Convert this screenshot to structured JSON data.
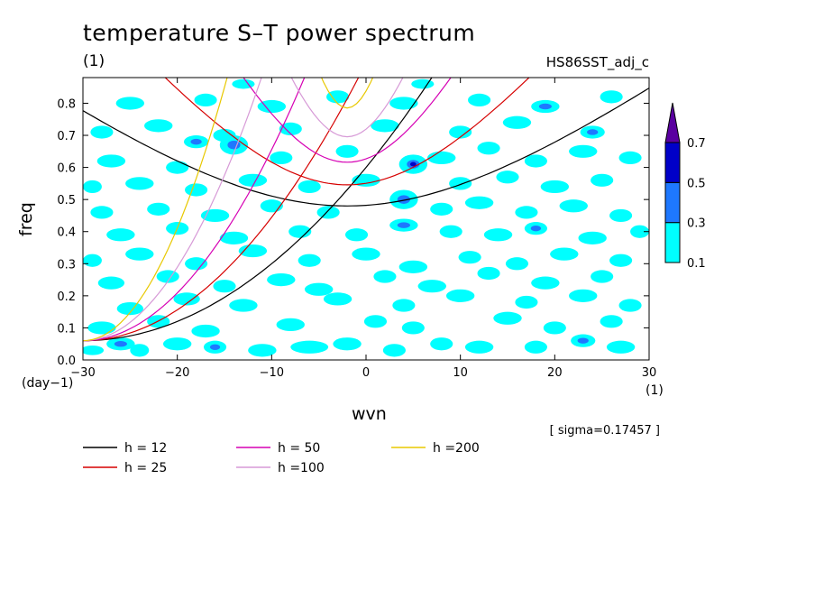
{
  "chart_data": {
    "type": "heatmap",
    "title": "temperature S–T power spectrum",
    "subtitle_left": "(1)",
    "subtitle_right": "HS86SST_adj_c",
    "xlabel": "wvn",
    "ylabel": "freq",
    "x_unit": "(1)",
    "y_unit": "(day−1)",
    "xlim": [
      -30,
      30
    ],
    "ylim": [
      0,
      0.88
    ],
    "x_ticks": [
      -30,
      -20,
      -10,
      0,
      10,
      20,
      30
    ],
    "x_tick_labels": [
      "−30",
      "−20",
      "−10",
      "0",
      "10",
      "20",
      "30"
    ],
    "y_ticks": [
      0.0,
      0.1,
      0.2,
      0.3,
      0.4,
      0.5,
      0.6,
      0.7,
      0.8
    ],
    "y_tick_labels": [
      "0.0",
      "0.1",
      "0.2",
      "0.3",
      "0.4",
      "0.5",
      "0.6",
      "0.7",
      "0.8"
    ],
    "colorbar": {
      "levels": [
        0.1,
        0.3,
        0.5,
        0.7
      ],
      "labels": [
        "0.1",
        "0.3",
        "0.5",
        "0.7"
      ],
      "colors": [
        "#00ffff",
        "#1e78ff",
        "#0000c8",
        "#5a00a0"
      ]
    },
    "sigma_text": "[ sigma=0.17457 ]",
    "series": [
      {
        "name": "h = 12",
        "h": 12,
        "color": "#000000"
      },
      {
        "name": "h = 25",
        "h": 25,
        "color": "#d60000"
      },
      {
        "name": "h = 50",
        "h": 50,
        "color": "#d600b4"
      },
      {
        "name": "h =100",
        "h": 100,
        "color": "#d79ad7"
      },
      {
        "name": "h =200",
        "h": 200,
        "color": "#e8c800"
      }
    ],
    "patches": [
      [
        -29,
        0.03,
        1.2,
        0.015,
        0
      ],
      [
        -26,
        0.05,
        1.5,
        0.02,
        1
      ],
      [
        -24,
        0.03,
        1.0,
        0.02,
        0
      ],
      [
        -20,
        0.05,
        1.5,
        0.02,
        0
      ],
      [
        -16,
        0.04,
        1.2,
        0.02,
        1
      ],
      [
        -11,
        0.03,
        1.5,
        0.02,
        0
      ],
      [
        -6,
        0.04,
        2.0,
        0.02,
        0
      ],
      [
        -2,
        0.05,
        1.5,
        0.02,
        0
      ],
      [
        3,
        0.03,
        1.2,
        0.02,
        0
      ],
      [
        8,
        0.05,
        1.2,
        0.02,
        0
      ],
      [
        12,
        0.04,
        1.5,
        0.02,
        0
      ],
      [
        18,
        0.04,
        1.2,
        0.02,
        0
      ],
      [
        23,
        0.06,
        1.3,
        0.02,
        1
      ],
      [
        27,
        0.04,
        1.5,
        0.02,
        0
      ],
      [
        -28,
        0.1,
        1.5,
        0.02,
        0
      ],
      [
        -22,
        0.12,
        1.2,
        0.02,
        0
      ],
      [
        -17,
        0.09,
        1.5,
        0.02,
        0
      ],
      [
        -8,
        0.11,
        1.5,
        0.02,
        0
      ],
      [
        1,
        0.12,
        1.2,
        0.02,
        0
      ],
      [
        5,
        0.1,
        1.2,
        0.02,
        0
      ],
      [
        15,
        0.13,
        1.5,
        0.02,
        0
      ],
      [
        20,
        0.1,
        1.2,
        0.02,
        0
      ],
      [
        26,
        0.12,
        1.2,
        0.02,
        0
      ],
      [
        -25,
        0.16,
        1.4,
        0.02,
        0
      ],
      [
        -19,
        0.19,
        1.4,
        0.02,
        0
      ],
      [
        -13,
        0.17,
        1.5,
        0.02,
        0
      ],
      [
        -3,
        0.19,
        1.5,
        0.02,
        0
      ],
      [
        4,
        0.17,
        1.2,
        0.02,
        0
      ],
      [
        10,
        0.2,
        1.5,
        0.02,
        0
      ],
      [
        17,
        0.18,
        1.2,
        0.02,
        0
      ],
      [
        23,
        0.2,
        1.5,
        0.02,
        0
      ],
      [
        28,
        0.17,
        1.2,
        0.02,
        0
      ],
      [
        -27,
        0.24,
        1.4,
        0.02,
        0
      ],
      [
        -21,
        0.26,
        1.2,
        0.02,
        0
      ],
      [
        -15,
        0.23,
        1.2,
        0.02,
        0
      ],
      [
        -9,
        0.25,
        1.5,
        0.02,
        0
      ],
      [
        -5,
        0.22,
        1.5,
        0.02,
        0
      ],
      [
        2,
        0.26,
        1.2,
        0.02,
        0
      ],
      [
        7,
        0.23,
        1.5,
        0.02,
        0
      ],
      [
        13,
        0.27,
        1.2,
        0.02,
        0
      ],
      [
        19,
        0.24,
        1.5,
        0.02,
        0
      ],
      [
        25,
        0.26,
        1.2,
        0.02,
        0
      ],
      [
        -29,
        0.31,
        1.0,
        0.02,
        0
      ],
      [
        -24,
        0.33,
        1.5,
        0.02,
        0
      ],
      [
        -18,
        0.3,
        1.2,
        0.02,
        0
      ],
      [
        -12,
        0.34,
        1.5,
        0.02,
        0
      ],
      [
        -6,
        0.31,
        1.2,
        0.02,
        0
      ],
      [
        0,
        0.33,
        1.5,
        0.02,
        0
      ],
      [
        5,
        0.29,
        1.5,
        0.02,
        0
      ],
      [
        11,
        0.32,
        1.2,
        0.02,
        0
      ],
      [
        16,
        0.3,
        1.2,
        0.02,
        0
      ],
      [
        21,
        0.33,
        1.5,
        0.02,
        0
      ],
      [
        27,
        0.31,
        1.2,
        0.02,
        0
      ],
      [
        -26,
        0.39,
        1.5,
        0.02,
        0
      ],
      [
        -20,
        0.41,
        1.2,
        0.02,
        0
      ],
      [
        -14,
        0.38,
        1.5,
        0.02,
        0
      ],
      [
        -7,
        0.4,
        1.2,
        0.02,
        0
      ],
      [
        -1,
        0.39,
        1.2,
        0.02,
        0
      ],
      [
        4,
        0.42,
        1.5,
        0.02,
        1
      ],
      [
        9,
        0.4,
        1.2,
        0.02,
        0
      ],
      [
        14,
        0.39,
        1.5,
        0.02,
        0
      ],
      [
        18,
        0.41,
        1.2,
        0.02,
        1
      ],
      [
        24,
        0.38,
        1.5,
        0.02,
        0
      ],
      [
        29,
        0.4,
        1.0,
        0.02,
        0
      ],
      [
        -28,
        0.46,
        1.2,
        0.02,
        0
      ],
      [
        -22,
        0.47,
        1.2,
        0.02,
        0
      ],
      [
        -16,
        0.45,
        1.5,
        0.02,
        0
      ],
      [
        -10,
        0.48,
        1.2,
        0.02,
        0
      ],
      [
        -4,
        0.46,
        1.2,
        0.02,
        0
      ],
      [
        4,
        0.5,
        1.5,
        0.03,
        1
      ],
      [
        8,
        0.47,
        1.2,
        0.02,
        0
      ],
      [
        12,
        0.49,
        1.5,
        0.02,
        0
      ],
      [
        17,
        0.46,
        1.2,
        0.02,
        0
      ],
      [
        22,
        0.48,
        1.5,
        0.02,
        0
      ],
      [
        27,
        0.45,
        1.2,
        0.02,
        0
      ],
      [
        -29,
        0.54,
        1.0,
        0.02,
        0
      ],
      [
        -24,
        0.55,
        1.5,
        0.02,
        0
      ],
      [
        -18,
        0.53,
        1.2,
        0.02,
        0
      ],
      [
        -12,
        0.56,
        1.5,
        0.02,
        0
      ],
      [
        -6,
        0.54,
        1.2,
        0.02,
        0
      ],
      [
        0,
        0.56,
        1.5,
        0.02,
        0
      ],
      [
        5,
        0.61,
        1.5,
        0.03,
        2
      ],
      [
        10,
        0.55,
        1.2,
        0.02,
        0
      ],
      [
        15,
        0.57,
        1.2,
        0.02,
        0
      ],
      [
        20,
        0.54,
        1.5,
        0.02,
        0
      ],
      [
        25,
        0.56,
        1.2,
        0.02,
        0
      ],
      [
        -27,
        0.62,
        1.5,
        0.02,
        0
      ],
      [
        -20,
        0.6,
        1.2,
        0.02,
        0
      ],
      [
        -14,
        0.67,
        1.5,
        0.03,
        1
      ],
      [
        -18,
        0.68,
        1.3,
        0.02,
        1
      ],
      [
        -9,
        0.63,
        1.2,
        0.02,
        0
      ],
      [
        -2,
        0.65,
        1.2,
        0.02,
        0
      ],
      [
        8,
        0.63,
        1.5,
        0.02,
        0
      ],
      [
        13,
        0.66,
        1.2,
        0.02,
        0
      ],
      [
        18,
        0.62,
        1.2,
        0.02,
        0
      ],
      [
        23,
        0.65,
        1.5,
        0.02,
        0
      ],
      [
        28,
        0.63,
        1.2,
        0.02,
        0
      ],
      [
        -28,
        0.71,
        1.2,
        0.02,
        0
      ],
      [
        -22,
        0.73,
        1.5,
        0.02,
        0
      ],
      [
        -15,
        0.7,
        1.2,
        0.02,
        0
      ],
      [
        -8,
        0.72,
        1.2,
        0.02,
        0
      ],
      [
        2,
        0.73,
        1.5,
        0.02,
        0
      ],
      [
        10,
        0.71,
        1.2,
        0.02,
        0
      ],
      [
        16,
        0.74,
        1.5,
        0.02,
        0
      ],
      [
        24,
        0.71,
        1.3,
        0.02,
        1
      ],
      [
        -25,
        0.8,
        1.5,
        0.02,
        0
      ],
      [
        -17,
        0.81,
        1.2,
        0.02,
        0
      ],
      [
        -10,
        0.79,
        1.5,
        0.02,
        0
      ],
      [
        -3,
        0.82,
        1.2,
        0.02,
        0
      ],
      [
        4,
        0.8,
        1.5,
        0.02,
        0
      ],
      [
        12,
        0.81,
        1.2,
        0.02,
        0
      ],
      [
        19,
        0.79,
        1.5,
        0.02,
        1
      ],
      [
        26,
        0.82,
        1.2,
        0.02,
        0
      ],
      [
        -13,
        0.86,
        1.2,
        0.015,
        0
      ],
      [
        6,
        0.86,
        1.2,
        0.015,
        0
      ]
    ]
  }
}
